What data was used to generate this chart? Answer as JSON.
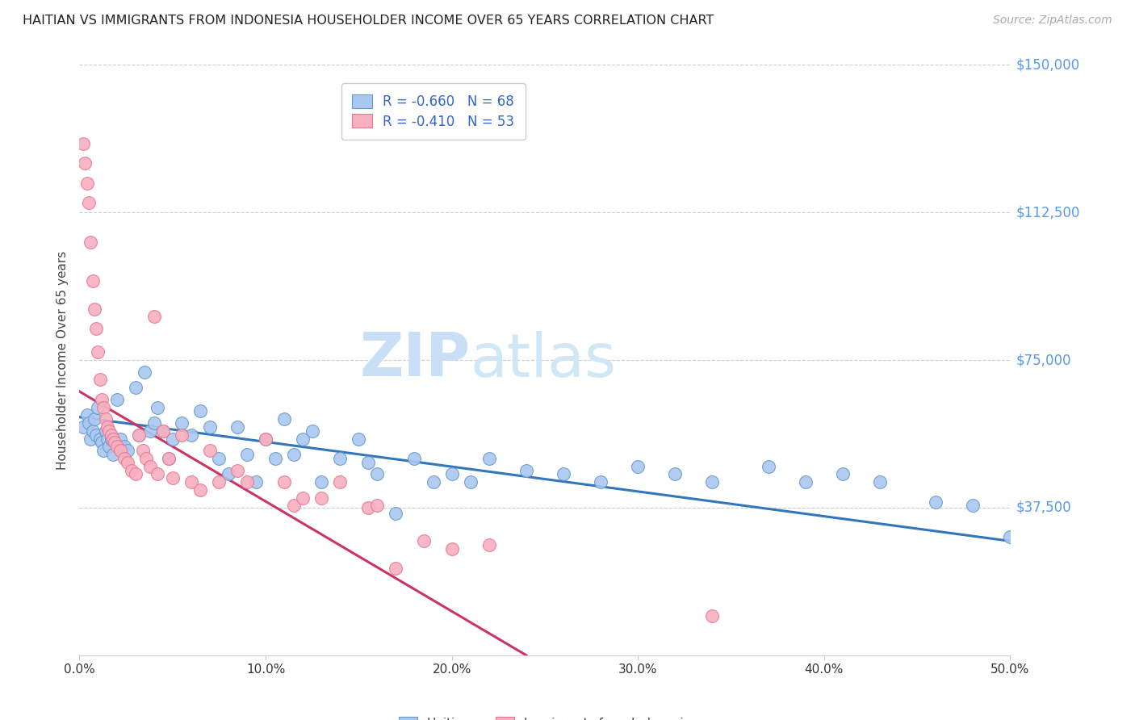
{
  "title": "HAITIAN VS IMMIGRANTS FROM INDONESIA HOUSEHOLDER INCOME OVER 65 YEARS CORRELATION CHART",
  "source": "Source: ZipAtlas.com",
  "ylabel": "Householder Income Over 65 years",
  "xlim": [
    0.0,
    0.5
  ],
  "ylim": [
    0,
    150000
  ],
  "yticks": [
    0,
    37500,
    75000,
    112500,
    150000
  ],
  "ytick_labels": [
    "",
    "$37,500",
    "$75,000",
    "$112,500",
    "$150,000"
  ],
  "xticks": [
    0.0,
    0.1,
    0.2,
    0.3,
    0.4,
    0.5
  ],
  "xtick_labels": [
    "0.0%",
    "10.0%",
    "20.0%",
    "30.0%",
    "40.0%",
    "50.0%"
  ],
  "haitian_color": "#aac8f0",
  "haitian_edge_color": "#6699cc",
  "indonesia_color": "#f8b0c0",
  "indonesia_edge_color": "#e87890",
  "trend_blue": "#3377bb",
  "trend_pink": "#cc3366",
  "R_haitian": "-0.660",
  "N_haitian": 68,
  "R_indonesia": "-0.410",
  "N_indonesia": 53,
  "watermark_zip": "ZIP",
  "watermark_atlas": "atlas",
  "grid_color": "#cccccc",
  "background": "#ffffff",
  "haitian_x": [
    0.002,
    0.004,
    0.005,
    0.006,
    0.007,
    0.008,
    0.009,
    0.01,
    0.011,
    0.012,
    0.013,
    0.014,
    0.015,
    0.016,
    0.017,
    0.018,
    0.02,
    0.022,
    0.024,
    0.026,
    0.03,
    0.032,
    0.035,
    0.038,
    0.04,
    0.042,
    0.045,
    0.048,
    0.05,
    0.055,
    0.06,
    0.065,
    0.07,
    0.075,
    0.08,
    0.085,
    0.09,
    0.095,
    0.1,
    0.105,
    0.11,
    0.115,
    0.12,
    0.125,
    0.13,
    0.14,
    0.15,
    0.155,
    0.16,
    0.17,
    0.18,
    0.19,
    0.2,
    0.21,
    0.22,
    0.24,
    0.26,
    0.28,
    0.3,
    0.32,
    0.34,
    0.37,
    0.39,
    0.41,
    0.43,
    0.46,
    0.48,
    0.5
  ],
  "haitian_y": [
    58000,
    61000,
    59000,
    55000,
    57000,
    60000,
    56000,
    63000,
    55000,
    54000,
    52000,
    57000,
    55000,
    53000,
    55000,
    51000,
    65000,
    55000,
    53000,
    52000,
    68000,
    56000,
    72000,
    57000,
    59000,
    63000,
    57000,
    50000,
    55000,
    59000,
    56000,
    62000,
    58000,
    50000,
    46000,
    58000,
    51000,
    44000,
    55000,
    50000,
    60000,
    51000,
    55000,
    57000,
    44000,
    50000,
    55000,
    49000,
    46000,
    36000,
    50000,
    44000,
    46000,
    44000,
    50000,
    47000,
    46000,
    44000,
    48000,
    46000,
    44000,
    48000,
    44000,
    46000,
    44000,
    39000,
    38000,
    30000
  ],
  "indonesia_x": [
    0.002,
    0.003,
    0.004,
    0.005,
    0.006,
    0.007,
    0.008,
    0.009,
    0.01,
    0.011,
    0.012,
    0.013,
    0.014,
    0.015,
    0.016,
    0.017,
    0.018,
    0.019,
    0.02,
    0.022,
    0.024,
    0.026,
    0.028,
    0.03,
    0.032,
    0.034,
    0.036,
    0.038,
    0.04,
    0.042,
    0.045,
    0.048,
    0.05,
    0.055,
    0.06,
    0.065,
    0.07,
    0.075,
    0.085,
    0.09,
    0.1,
    0.11,
    0.115,
    0.12,
    0.13,
    0.14,
    0.155,
    0.16,
    0.17,
    0.185,
    0.2,
    0.22,
    0.34
  ],
  "indonesia_y": [
    130000,
    125000,
    120000,
    115000,
    105000,
    95000,
    88000,
    83000,
    77000,
    70000,
    65000,
    63000,
    60000,
    58000,
    57000,
    56000,
    55000,
    54000,
    53000,
    52000,
    50000,
    49000,
    47000,
    46000,
    56000,
    52000,
    50000,
    48000,
    86000,
    46000,
    57000,
    50000,
    45000,
    56000,
    44000,
    42000,
    52000,
    44000,
    47000,
    44000,
    55000,
    44000,
    38000,
    40000,
    40000,
    44000,
    37500,
    38000,
    22000,
    29000,
    27000,
    28000,
    10000
  ],
  "trend_blue_x0": 0.0,
  "trend_blue_x1": 0.5,
  "trend_blue_y0": 60500,
  "trend_blue_y1": 29000,
  "trend_pink_x0": 0.0,
  "trend_pink_x1": 0.24,
  "trend_pink_y0": 67000,
  "trend_pink_y1": 0,
  "trend_pink_dash_x0": 0.24,
  "trend_pink_dash_x1": 0.36
}
